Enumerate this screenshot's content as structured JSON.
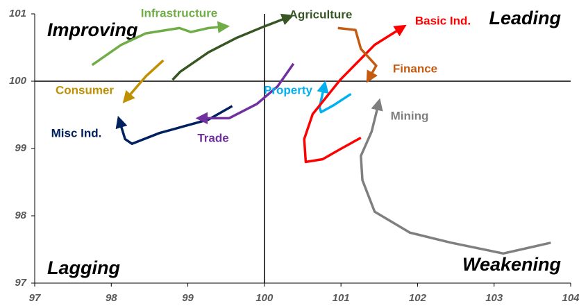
{
  "chart_data": {
    "type": "line",
    "xlim": [
      97,
      104
    ],
    "xticks": [
      97,
      98,
      99,
      100,
      101,
      102,
      103,
      104
    ],
    "ylim": [
      97,
      101
    ],
    "yticks": [
      97,
      98,
      99,
      100,
      101
    ],
    "reference_lines": {
      "x": 100,
      "y": 100
    },
    "annotations": [
      "Improving",
      "Leading",
      "Lagging",
      "Weakening"
    ],
    "series": [
      {
        "name": "Infrastructure",
        "color": "#70ad47",
        "x": [
          97.75,
          98.13,
          98.45,
          98.89,
          99.04,
          99.27,
          99.47
        ],
        "values": [
          100.24,
          100.54,
          100.71,
          100.79,
          100.73,
          100.79,
          100.81
        ]
      },
      {
        "name": "Agriculture",
        "color": "#375623",
        "x": [
          98.8,
          98.9,
          99.27,
          99.63,
          99.99,
          100.31
        ],
        "values": [
          100.02,
          100.14,
          100.43,
          100.64,
          100.81,
          100.95
        ]
      },
      {
        "name": "Consumer",
        "color": "#bf9000",
        "x": [
          98.68,
          98.45,
          98.2
        ],
        "values": [
          100.31,
          100.07,
          99.74
        ]
      },
      {
        "name": "Misc Ind.",
        "color": "#002060",
        "x": [
          99.58,
          99.27,
          98.95,
          98.63,
          98.27,
          98.18,
          98.11
        ],
        "values": [
          99.63,
          99.43,
          99.33,
          99.23,
          99.07,
          99.14,
          99.4
        ]
      },
      {
        "name": "Trade",
        "color": "#7030a0",
        "x": [
          100.38,
          100.17,
          99.9,
          99.54,
          99.18
        ],
        "values": [
          100.26,
          99.92,
          99.66,
          99.45,
          99.45
        ]
      },
      {
        "name": "Property",
        "color": "#00b0f0",
        "x": [
          101.13,
          100.9,
          100.74,
          100.72,
          100.78
        ],
        "values": [
          99.81,
          99.64,
          99.54,
          99.61,
          99.92
        ]
      },
      {
        "name": "Basic Ind.",
        "color": "#ff0000",
        "x": [
          101.26,
          100.99,
          100.76,
          100.54,
          100.52,
          100.63,
          100.99,
          101.44,
          101.79
        ],
        "values": [
          99.16,
          98.99,
          98.84,
          98.8,
          99.14,
          99.51,
          100.02,
          100.54,
          100.79
        ]
      },
      {
        "name": "Finance",
        "color": "#c55a11",
        "x": [
          100.96,
          101.19,
          101.26,
          101.46,
          101.37
        ],
        "values": [
          100.79,
          100.76,
          100.48,
          100.23,
          100.05
        ]
      },
      {
        "name": "Mining",
        "color": "#7f7f7f",
        "x": [
          103.74,
          103.12,
          102.44,
          101.9,
          101.44,
          101.28,
          101.26,
          101.4,
          101.49
        ],
        "values": [
          97.6,
          97.44,
          97.6,
          97.75,
          98.06,
          98.53,
          98.89,
          99.25,
          99.66
        ]
      }
    ]
  }
}
